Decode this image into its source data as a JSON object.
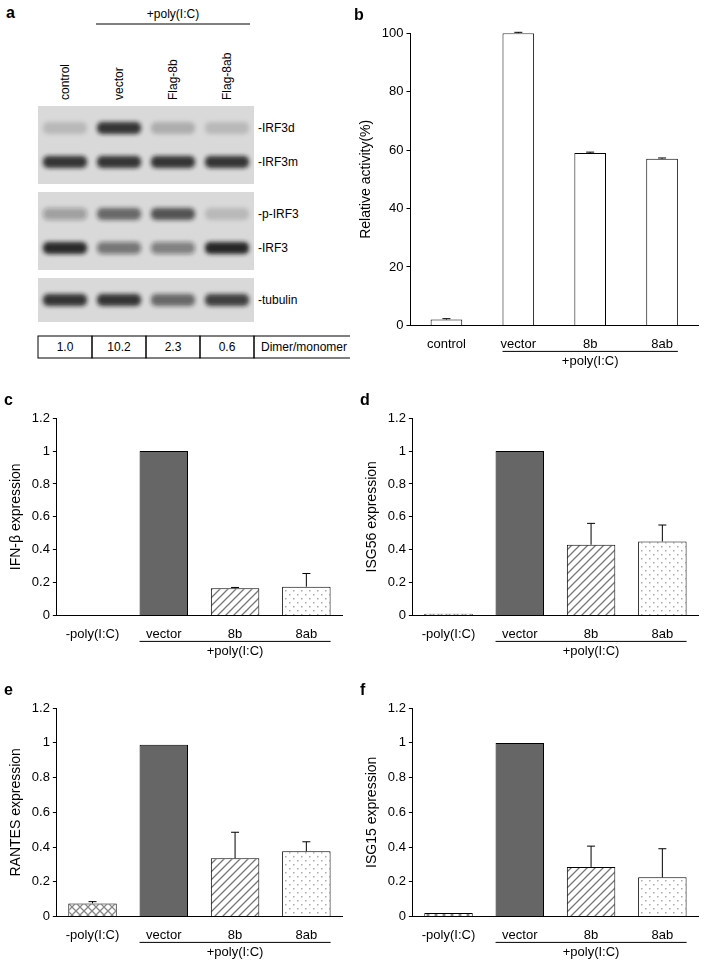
{
  "blot": {
    "title": "a",
    "group_label": "+poly(I:C)",
    "lanes": [
      "control",
      "vector",
      "Flag-8b",
      "Flag-8ab"
    ],
    "group_lanes": [
      "vector",
      "Flag-8b",
      "Flag-8ab"
    ],
    "panels": [
      {
        "bands": [
          {
            "label": "-IRF3d",
            "intensity": [
              0.15,
              0.85,
              0.2,
              0.15
            ]
          },
          {
            "label": "-IRF3m",
            "intensity": [
              0.85,
              0.85,
              0.85,
              0.85
            ]
          }
        ]
      },
      {
        "bands": [
          {
            "label": "-p-IRF3",
            "intensity": [
              0.3,
              0.6,
              0.7,
              0.15
            ]
          },
          {
            "label": "-IRF3",
            "intensity": [
              0.9,
              0.5,
              0.45,
              0.95
            ]
          }
        ]
      },
      {
        "bands": [
          {
            "label": "-tubulin",
            "intensity": [
              0.85,
              0.85,
              0.6,
              0.8
            ]
          }
        ]
      }
    ],
    "ratios": [
      "1.0",
      "10.2",
      "2.3",
      "0.6"
    ],
    "ratio_label": "Dimer/monomer"
  },
  "chart_data": [
    {
      "type": "bar",
      "title": "b",
      "ylabel": "Relative activity(%)",
      "categories": [
        "control",
        "vector",
        "8b",
        "8ab"
      ],
      "values": [
        2,
        100,
        59,
        57
      ],
      "errors": [
        0.3,
        0.3,
        0.3,
        0.3
      ],
      "colors": [
        "#ffffff",
        "#ffffff",
        "#ffffff",
        "#ffffff"
      ],
      "ylim": [
        0,
        100
      ],
      "yticks": [
        0,
        20,
        40,
        60,
        80,
        100
      ],
      "grid": false,
      "annotations": [
        {
          "text": "+poly(I:C)",
          "categories": [
            "vector",
            "8b",
            "8ab"
          ]
        }
      ]
    },
    {
      "type": "bar",
      "title": "c",
      "ylabel": "IFN-β expression",
      "categories": [
        "-poly(I:C)",
        "vector",
        "8b",
        "8ab"
      ],
      "values": [
        0,
        1,
        0.165,
        0.175
      ],
      "errors": [
        0,
        0,
        0.005,
        0.08
      ],
      "colors": [
        "#888888",
        "#666666",
        "#777777",
        "#aaaaaa"
      ],
      "ylim": [
        0,
        1.2
      ],
      "yticks": [
        0,
        0.2,
        0.4,
        0.6,
        0.8,
        1,
        1.2
      ],
      "grid": false,
      "annotations": [
        {
          "text": "+poly(I:C)",
          "categories": [
            "vector",
            "8b",
            "8ab"
          ]
        }
      ]
    },
    {
      "type": "bar",
      "title": "d",
      "ylabel": "ISG56 expression",
      "categories": [
        "-poly(I:C)",
        "vector",
        "8b",
        "8ab"
      ],
      "values": [
        0.01,
        1,
        0.43,
        0.45
      ],
      "errors": [
        0,
        0,
        0.13,
        0.1
      ],
      "colors": [
        "#888888",
        "#666666",
        "#777777",
        "#aaaaaa"
      ],
      "ylim": [
        0,
        1.2
      ],
      "yticks": [
        0,
        0.2,
        0.4,
        0.6,
        0.8,
        1,
        1.2
      ],
      "grid": false,
      "annotations": [
        {
          "text": "+poly(I:C)",
          "categories": [
            "vector",
            "8b",
            "8ab"
          ]
        }
      ]
    },
    {
      "type": "bar",
      "title": "e",
      "ylabel": "RANTES expression",
      "categories": [
        "-poly(I:C)",
        "vector",
        "8b",
        "8ab"
      ],
      "values": [
        0.075,
        0.99,
        0.335,
        0.375
      ],
      "errors": [
        0.01,
        0,
        0.15,
        0.055
      ],
      "colors": [
        "#888888",
        "#666666",
        "#777777",
        "#aaaaaa"
      ],
      "ylim": [
        0,
        1.2
      ],
      "yticks": [
        0,
        0.2,
        0.4,
        0.6,
        0.8,
        1,
        1.2
      ],
      "grid": false,
      "annotations": [
        {
          "text": "+poly(I:C)",
          "categories": [
            "vector",
            "8b",
            "8ab"
          ]
        }
      ]
    },
    {
      "type": "bar",
      "title": "f",
      "ylabel": "ISG15 expression",
      "categories": [
        "-poly(I:C)",
        "vector",
        "8b",
        "8ab"
      ],
      "values": [
        0.02,
        1,
        0.285,
        0.225
      ],
      "errors": [
        0,
        0,
        0.12,
        0.165
      ],
      "colors": [
        "#888888",
        "#666666",
        "#777777",
        "#aaaaaa"
      ],
      "ylim": [
        0,
        1.2
      ],
      "yticks": [
        0,
        0.2,
        0.4,
        0.6,
        0.8,
        1,
        1.2
      ],
      "grid": false,
      "annotations": [
        {
          "text": "+poly(I:C)",
          "categories": [
            "vector",
            "8b",
            "8ab"
          ]
        }
      ]
    }
  ]
}
